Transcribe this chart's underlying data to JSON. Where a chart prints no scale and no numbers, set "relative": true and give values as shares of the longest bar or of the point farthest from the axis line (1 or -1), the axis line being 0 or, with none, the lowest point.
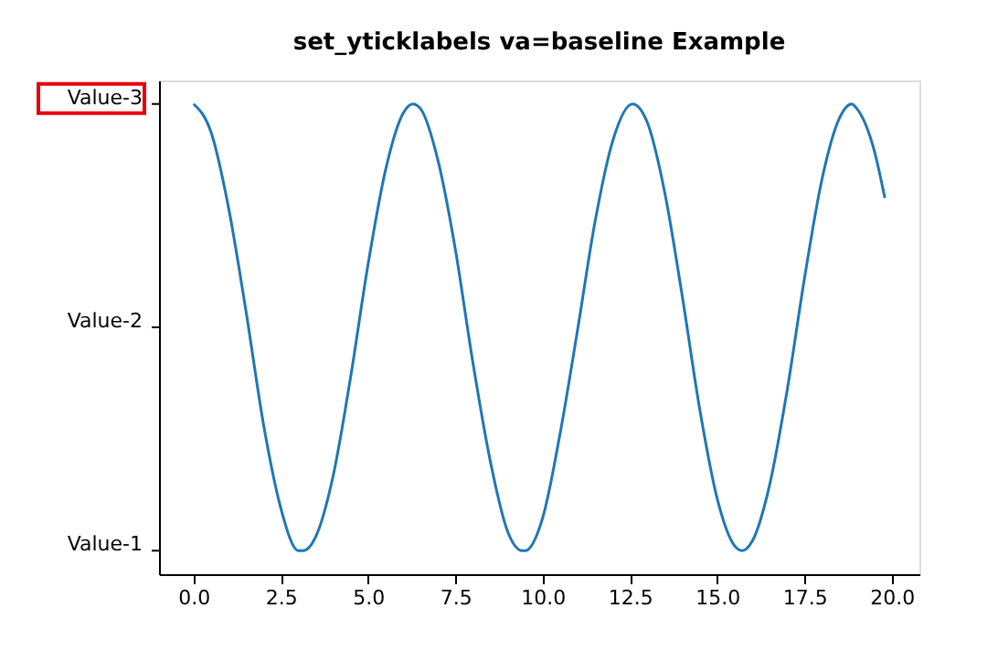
{
  "chart_data": {
    "type": "line",
    "title": "set_yticklabels va=baseline Example",
    "relative": true,
    "x": [
      0,
      0.5,
      1,
      1.5,
      2,
      2.5,
      3,
      3.14,
      3.5,
      4,
      4.5,
      5,
      5.5,
      6,
      6.28,
      6.5,
      7,
      7.5,
      8,
      8.5,
      9,
      9.42,
      9.5,
      10,
      10.5,
      11,
      11.5,
      12,
      12.57,
      13,
      13.5,
      14,
      14.5,
      15,
      15.5,
      15.71,
      16,
      16.5,
      17,
      17.5,
      18,
      18.5,
      18.85,
      19,
      19.5,
      19.8
    ],
    "series": [
      {
        "color": "#1f77b4",
        "values": [
          1,
          0.94,
          0.78,
          0.56,
          0.32,
          0.14,
          0.05,
          0.05,
          0.08,
          0.21,
          0.42,
          0.66,
          0.86,
          0.98,
          1,
          0.99,
          0.88,
          0.69,
          0.45,
          0.24,
          0.09,
          0.05,
          0.05,
          0.12,
          0.3,
          0.52,
          0.75,
          0.92,
          1,
          0.96,
          0.81,
          0.59,
          0.35,
          0.16,
          0.06,
          0.05,
          0.07,
          0.19,
          0.39,
          0.63,
          0.84,
          0.97,
          1,
          0.99,
          0.9,
          0.8
        ]
      }
    ],
    "annotations": [
      "Value-1",
      "Value-2",
      "Value-3"
    ],
    "xlim": [
      -0.99,
      20.79
    ],
    "xticks": [
      {
        "value": 0,
        "label": "0.0"
      },
      {
        "value": 2.5,
        "label": "2.5"
      },
      {
        "value": 5,
        "label": "5.0"
      },
      {
        "value": 7.5,
        "label": "7.5"
      },
      {
        "value": 10,
        "label": "10.0"
      },
      {
        "value": 12.5,
        "label": "12.5"
      },
      {
        "value": 15,
        "label": "15.0"
      },
      {
        "value": 17.5,
        "label": "17.5"
      },
      {
        "value": 20,
        "label": "20.0"
      }
    ],
    "grid": false,
    "marker": "none",
    "line_style": "solid"
  }
}
